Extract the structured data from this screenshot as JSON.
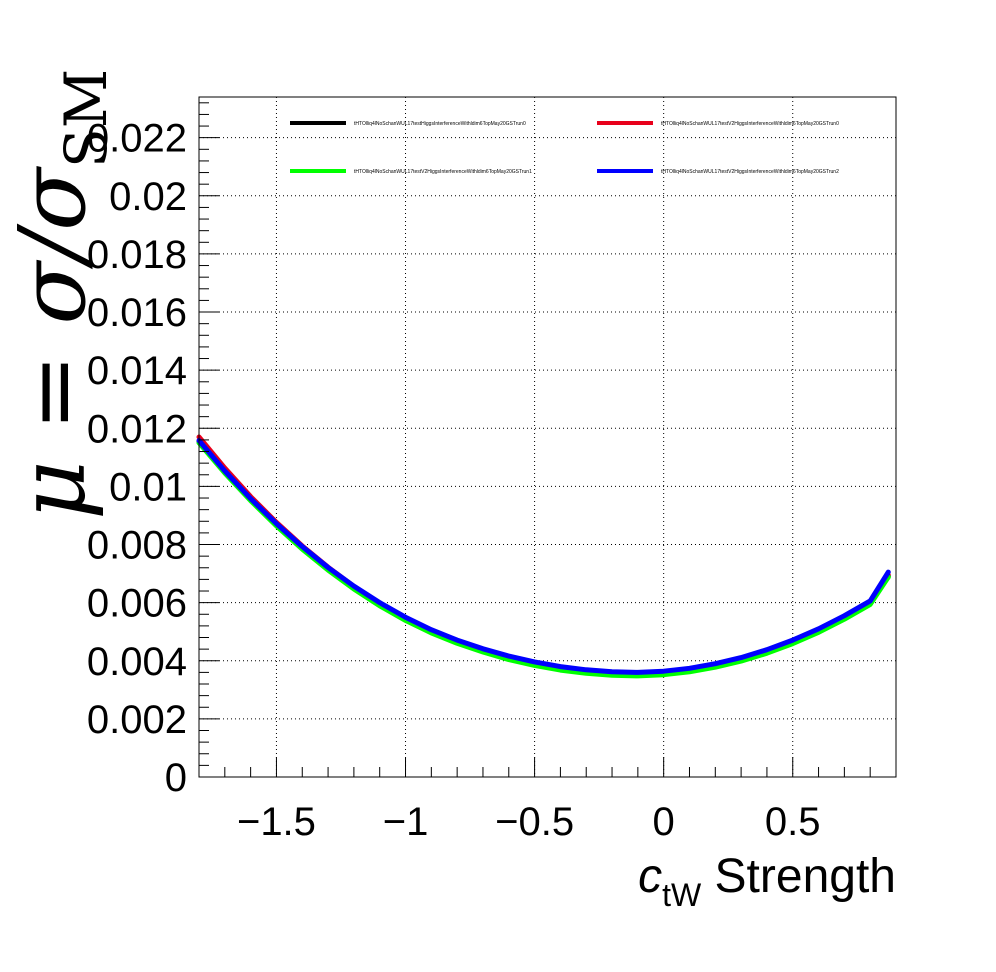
{
  "chart_data": {
    "type": "line",
    "title": "",
    "xlabel": {
      "symbol": "c",
      "subscript": "tW",
      "suffix": " Strength"
    },
    "ylabel": {
      "prefix": "μ = σ/σ",
      "subscript": "SM"
    },
    "xlim": [
      -1.8,
      0.9
    ],
    "ylim": [
      0,
      0.0234
    ],
    "x_ticks": [
      -1.5,
      -1,
      -0.5,
      0,
      0.5
    ],
    "x_tick_labels": [
      "−1.5",
      "−1",
      "−0.5",
      "0",
      "0.5"
    ],
    "y_ticks": [
      0,
      0.002,
      0.004,
      0.006,
      0.008,
      0.01,
      0.012,
      0.014,
      0.016,
      0.018,
      0.02,
      0.022
    ],
    "y_tick_labels": [
      "0",
      "0.002",
      "0.004",
      "0.006",
      "0.008",
      "0.01",
      "0.012",
      "0.014",
      "0.016",
      "0.018",
      "0.02",
      "0.022"
    ],
    "grid": true,
    "legend_position": "top",
    "x": [
      -1.8,
      -1.7,
      -1.6,
      -1.5,
      -1.4,
      -1.3,
      -1.2,
      -1.1,
      -1.0,
      -0.9,
      -0.8,
      -0.7,
      -0.6,
      -0.5,
      -0.4,
      -0.3,
      -0.2,
      -0.1,
      0.0,
      0.1,
      0.2,
      0.3,
      0.4,
      0.5,
      0.6,
      0.7,
      0.8,
      0.87
    ],
    "series": [
      {
        "name": "tHTOlliq4lNoSchanWUL17testHiggsInterferenceWithldim6TopMay20GSTrun0",
        "color": "#000000",
        "values": [
          0.01155,
          0.0105,
          0.00955,
          0.00868,
          0.00788,
          0.00716,
          0.00651,
          0.00593,
          0.00543,
          0.005,
          0.00464,
          0.00434,
          0.00408,
          0.00388,
          0.00372,
          0.00362,
          0.00355,
          0.00353,
          0.00357,
          0.00367,
          0.00383,
          0.00404,
          0.00431,
          0.00464,
          0.00503,
          0.00548,
          0.00599,
          0.0069
        ]
      },
      {
        "name": "tHTOlliq4lNoSchanWUL17testV2HiggsInterferenceWithldim6TopMay20GSTrun0",
        "color": "#e8001b",
        "values": [
          0.0117,
          0.01063,
          0.00965,
          0.00876,
          0.00795,
          0.00722,
          0.00656,
          0.00598,
          0.00547,
          0.00503,
          0.00466,
          0.00436,
          0.0041,
          0.0039,
          0.00374,
          0.00363,
          0.00357,
          0.00355,
          0.00359,
          0.00369,
          0.00385,
          0.00406,
          0.00433,
          0.00466,
          0.00505,
          0.0055,
          0.00601,
          0.00695
        ]
      },
      {
        "name": "tHTOlliq4lNoSchanWUL17testV2HiggsInterferenceWithldim6TopMay20GSTrun1",
        "color": "#00ff00",
        "values": [
          0.0115,
          0.01046,
          0.00951,
          0.00864,
          0.00784,
          0.00712,
          0.00647,
          0.00589,
          0.00539,
          0.00496,
          0.0046,
          0.0043,
          0.00404,
          0.00384,
          0.00368,
          0.00357,
          0.0035,
          0.00348,
          0.00352,
          0.00362,
          0.00378,
          0.00399,
          0.00426,
          0.00459,
          0.00498,
          0.00543,
          0.00594,
          0.00688
        ]
      },
      {
        "name": "tHTOlliq4lNoSchanWUL17testV2HiggsInterferenceWithldim6TopMay20GSTrun2",
        "color": "#0000ff",
        "values": [
          0.01158,
          0.01053,
          0.00958,
          0.00872,
          0.00793,
          0.00721,
          0.00657,
          0.006,
          0.0055,
          0.00507,
          0.00471,
          0.00441,
          0.00416,
          0.00396,
          0.0038,
          0.00369,
          0.00362,
          0.0036,
          0.00364,
          0.00374,
          0.0039,
          0.00411,
          0.00438,
          0.00471,
          0.0051,
          0.00555,
          0.00606,
          0.00705
        ]
      }
    ]
  }
}
